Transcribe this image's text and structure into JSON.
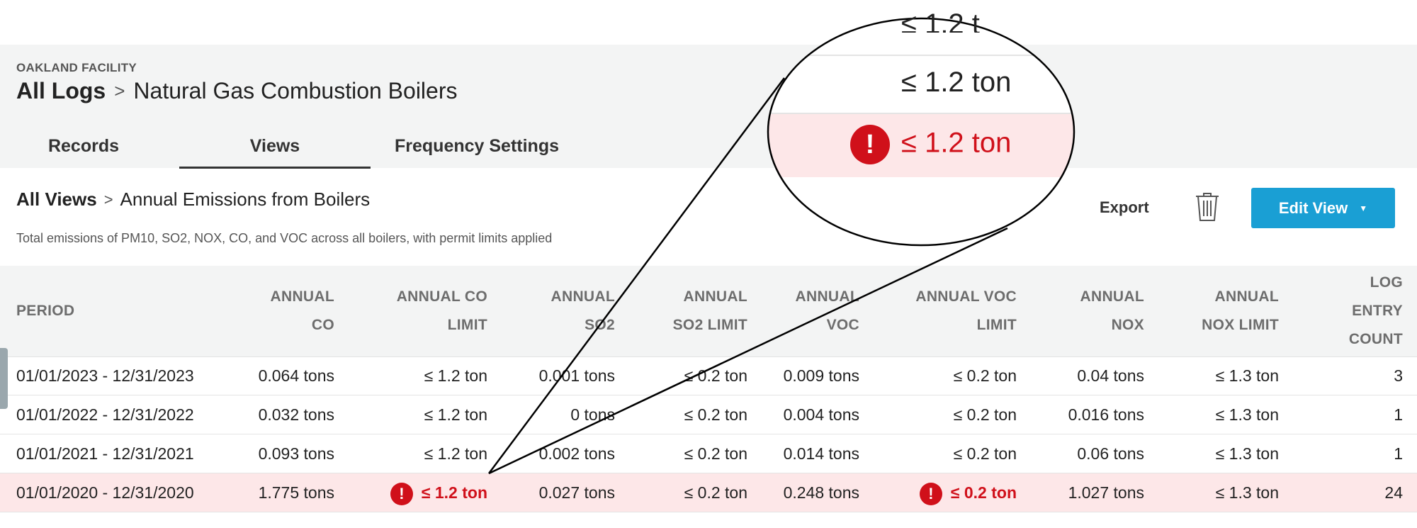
{
  "facility": "OAKLAND FACILITY",
  "log_breadcrumb": {
    "root": "All Logs",
    "separator": ">",
    "current": "Natural Gas Combustion Boilers"
  },
  "tabs": [
    {
      "label": "Records",
      "active": false
    },
    {
      "label": "Views",
      "active": true
    },
    {
      "label": "Frequency Settings",
      "active": false
    }
  ],
  "view_breadcrumb": {
    "root": "All Views",
    "separator": ">",
    "current": "Annual Emissions from Boilers"
  },
  "description": "Total emissions of PM10, SO2, NOX, CO, and VOC across all boilers, with permit limits applied",
  "actions": {
    "export": "Export",
    "delete_icon": "trash-icon",
    "edit_view": "Edit View"
  },
  "table": {
    "columns": [
      {
        "l1": "PERIOD",
        "l2": ""
      },
      {
        "l1": "ANNUAL",
        "l2": "CO"
      },
      {
        "l1": "ANNUAL CO",
        "l2": "LIMIT"
      },
      {
        "l1": "ANNUAL",
        "l2": "SO2"
      },
      {
        "l1": "ANNUAL",
        "l2": "SO2 LIMIT"
      },
      {
        "l1": "ANNUAL",
        "l2": "VOC"
      },
      {
        "l1": "ANNUAL VOC",
        "l2": "LIMIT"
      },
      {
        "l1": "ANNUAL",
        "l2": "NOX"
      },
      {
        "l1": "ANNUAL",
        "l2": "NOX LIMIT"
      },
      {
        "l1": "LOG",
        "l2": "ENTRY",
        "l3": "COUNT"
      }
    ],
    "rows": [
      {
        "period": "01/01/2023 - 12/31/2023",
        "co": "0.064 tons",
        "co_limit": "≤ 1.2 ton",
        "so2": "0.001 tons",
        "so2_limit": "≤ 0.2 ton",
        "voc": "0.009 tons",
        "voc_limit": "≤ 0.2 ton",
        "nox": "0.04 tons",
        "nox_limit": "≤ 1.3 ton",
        "count": "3"
      },
      {
        "period": "01/01/2022 - 12/31/2022",
        "co": "0.032 tons",
        "co_limit": "≤ 1.2 ton",
        "so2": "0 tons",
        "so2_limit": "≤ 0.2 ton",
        "voc": "0.004 tons",
        "voc_limit": "≤ 0.2 ton",
        "nox": "0.016 tons",
        "nox_limit": "≤ 1.3 ton",
        "count": "1"
      },
      {
        "period": "01/01/2021 - 12/31/2021",
        "co": "0.093 tons",
        "co_limit": "≤ 1.2 ton",
        "so2": "0.002 tons",
        "so2_limit": "≤ 0.2 ton",
        "voc": "0.014 tons",
        "voc_limit": "≤ 0.2 ton",
        "nox": "0.06 tons",
        "nox_limit": "≤ 1.3 ton",
        "count": "1"
      },
      {
        "period": "01/01/2020 - 12/31/2020",
        "co": "1.775 tons",
        "co_limit": "≤ 1.2 ton",
        "so2": "0.027 tons",
        "so2_limit": "≤ 0.2 ton",
        "voc": "0.248 tons",
        "voc_limit": "≤ 0.2 ton",
        "nox": "1.027 tons",
        "nox_limit": "≤ 1.3 ton",
        "count": "24"
      }
    ]
  },
  "zoom_callout": {
    "top_fragment": "≤ 1.2 t",
    "normal": "≤ 1.2 ton",
    "exceeded": "≤ 1.2 ton",
    "exceeded_mark": "!"
  },
  "colors": {
    "accent": "#1a9fd4",
    "alert_bg": "#fde7e8",
    "alert_text": "#d0101a",
    "header_bg": "#f3f4f4"
  }
}
